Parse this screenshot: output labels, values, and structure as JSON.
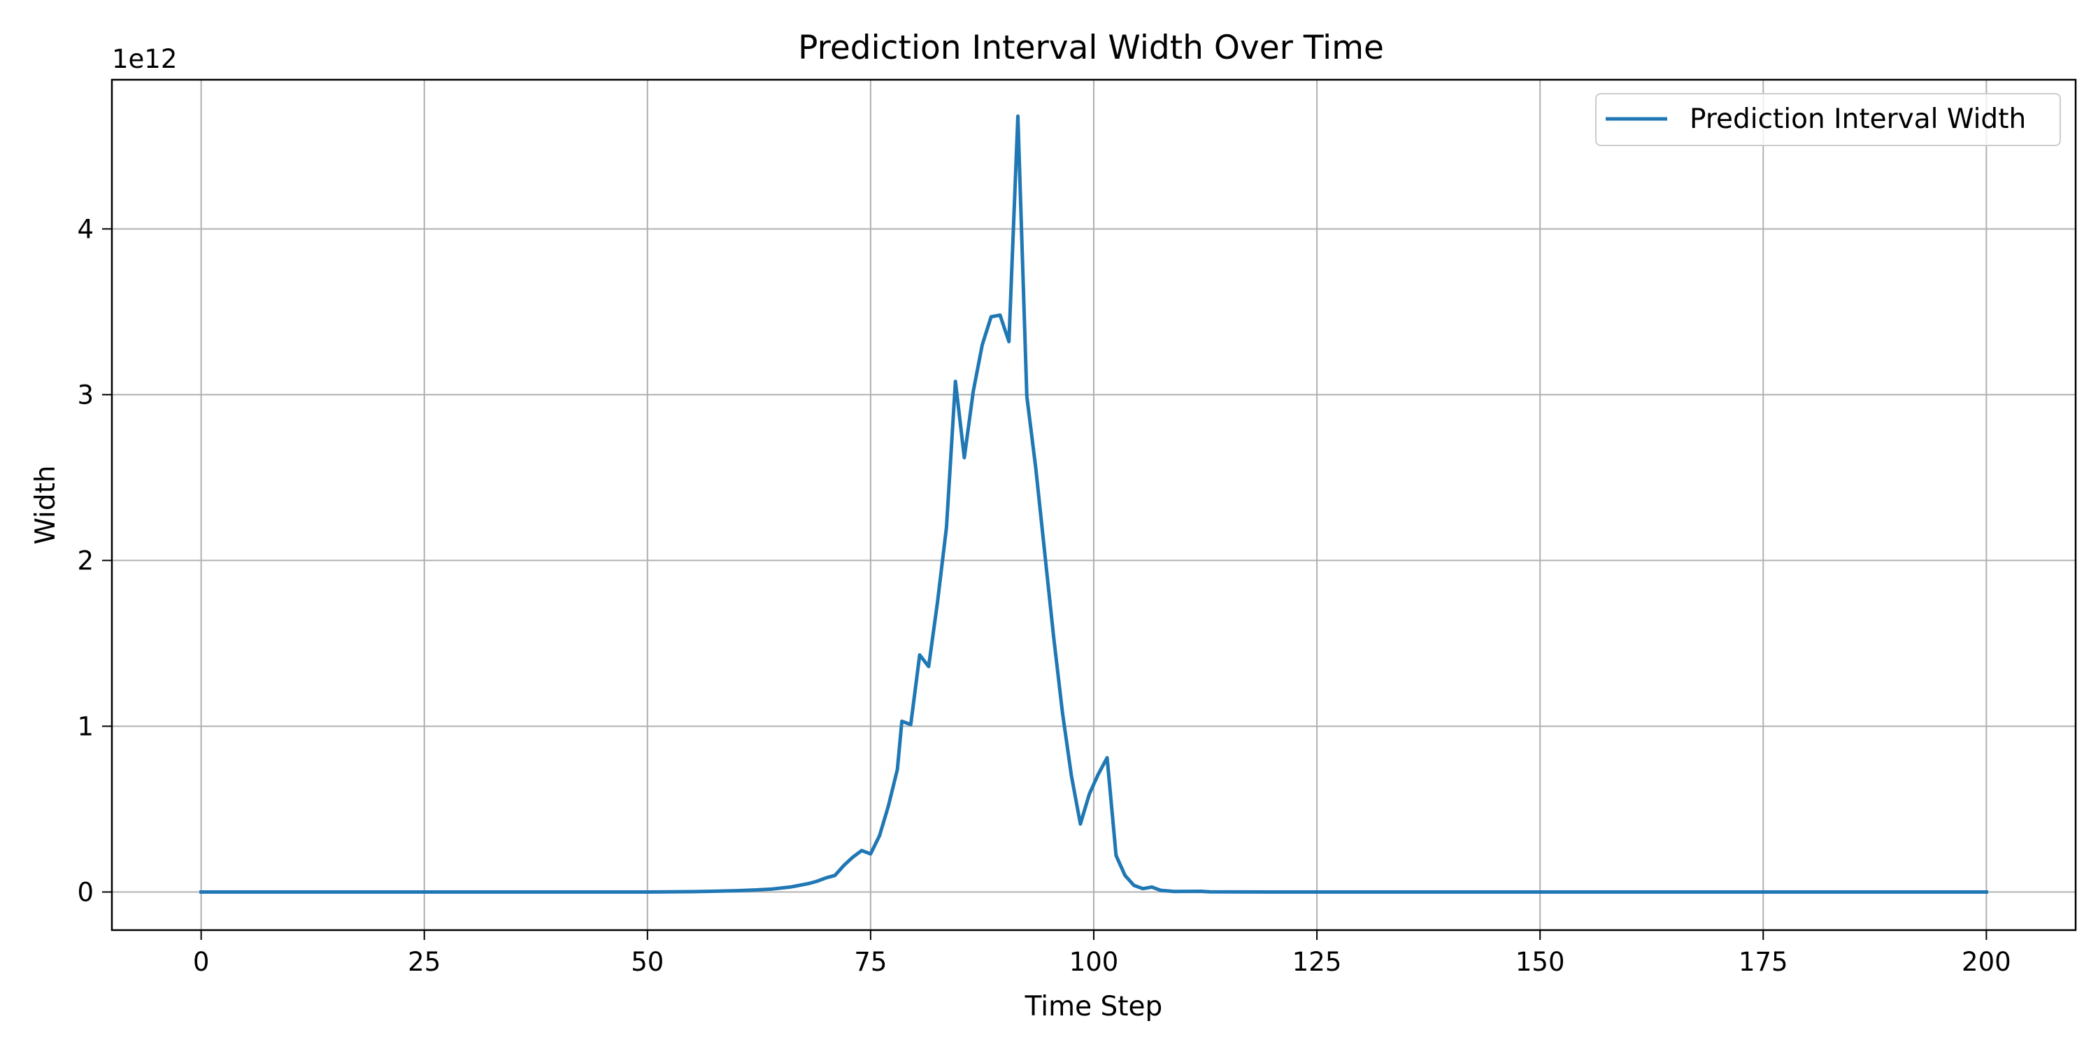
{
  "chart_data": {
    "type": "line",
    "title": "Prediction Interval Width Over Time",
    "xlabel": "Time Step",
    "ylabel": "Width",
    "y_offset_label": "1e12",
    "xlim": [
      -10,
      210
    ],
    "ylim": [
      -0.23,
      4.9
    ],
    "x_ticks": [
      0,
      25,
      50,
      75,
      100,
      125,
      150,
      175,
      200
    ],
    "x_tick_labels": [
      "0",
      "25",
      "50",
      "75",
      "100",
      "125",
      "150",
      "175",
      "200"
    ],
    "y_ticks": [
      0,
      1,
      2,
      3,
      4
    ],
    "y_tick_labels": [
      "0",
      "1",
      "2",
      "3",
      "4"
    ],
    "grid": true,
    "legend_position": "top-right",
    "series": [
      {
        "name": "Prediction Interval Width",
        "color": "#1f77b4",
        "points": [
          [
            0,
            0
          ],
          [
            10,
            0
          ],
          [
            20,
            0
          ],
          [
            30,
            0
          ],
          [
            40,
            0
          ],
          [
            50,
            0
          ],
          [
            55,
            0.002
          ],
          [
            58,
            0.005
          ],
          [
            60,
            0.008
          ],
          [
            62,
            0.012
          ],
          [
            64,
            0.018
          ],
          [
            66,
            0.03
          ],
          [
            68,
            0.05
          ],
          [
            69,
            0.065
          ],
          [
            70,
            0.085
          ],
          [
            71,
            0.1
          ],
          [
            72,
            0.16
          ],
          [
            73,
            0.21
          ],
          [
            74,
            0.25
          ],
          [
            75,
            0.23
          ],
          [
            76,
            0.34
          ],
          [
            77,
            0.52
          ],
          [
            78,
            0.74
          ],
          [
            78.5,
            1.03
          ],
          [
            79.5,
            1.01
          ],
          [
            80.5,
            1.43
          ],
          [
            81.5,
            1.36
          ],
          [
            82.5,
            1.75
          ],
          [
            83.5,
            2.2
          ],
          [
            84.5,
            3.08
          ],
          [
            85.5,
            2.62
          ],
          [
            86.5,
            3.02
          ],
          [
            87.5,
            3.3
          ],
          [
            88.5,
            3.47
          ],
          [
            89.5,
            3.48
          ],
          [
            90.5,
            3.32
          ],
          [
            91.5,
            4.68
          ],
          [
            92.5,
            2.99
          ],
          [
            93.5,
            2.56
          ],
          [
            94.5,
            2.05
          ],
          [
            95.5,
            1.54
          ],
          [
            96.5,
            1.08
          ],
          [
            97.5,
            0.7
          ],
          [
            98.5,
            0.41
          ],
          [
            99.5,
            0.59
          ],
          [
            100.5,
            0.71
          ],
          [
            101.5,
            0.81
          ],
          [
            102.5,
            0.22
          ],
          [
            103.5,
            0.1
          ],
          [
            104.5,
            0.04
          ],
          [
            105.5,
            0.02
          ],
          [
            106.5,
            0.03
          ],
          [
            107.5,
            0.01
          ],
          [
            109,
            0.003
          ],
          [
            112,
            0.004
          ],
          [
            113,
            0.001
          ],
          [
            120,
            0
          ],
          [
            150,
            0
          ],
          [
            175,
            0
          ],
          [
            200,
            0
          ]
        ]
      }
    ]
  }
}
